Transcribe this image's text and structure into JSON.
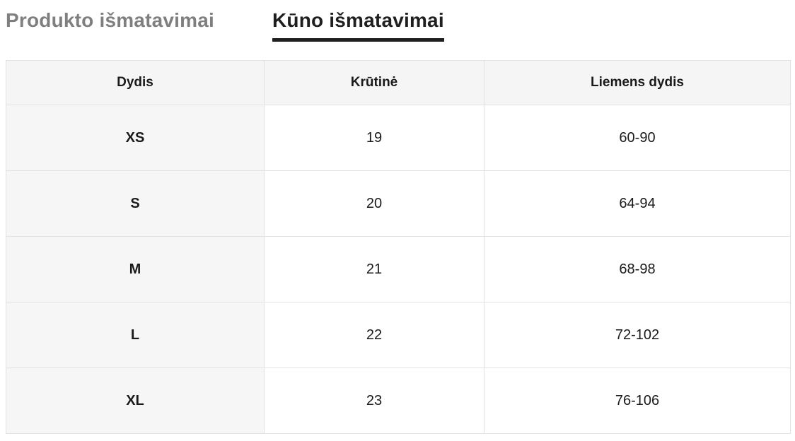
{
  "tabs": [
    {
      "label": "Produkto išmatavimai",
      "active": false
    },
    {
      "label": "Kūno išmatavimai",
      "active": true
    }
  ],
  "table": {
    "headers": [
      "Dydis",
      "Krūtinė",
      "Liemens dydis"
    ],
    "rows": [
      [
        "XS",
        "19",
        "60-90"
      ],
      [
        "S",
        "20",
        "64-94"
      ],
      [
        "M",
        "21",
        "68-98"
      ],
      [
        "L",
        "22",
        "72-102"
      ],
      [
        "XL",
        "23",
        "76-106"
      ]
    ]
  },
  "colors": {
    "tab_inactive": "#7f7f7f",
    "tab_active": "#1f1f1f",
    "header_bg": "#f5f5f5",
    "size_col_bg": "#f6f6f6",
    "border": "#e2e2e2",
    "text": "#1a1a1a"
  }
}
